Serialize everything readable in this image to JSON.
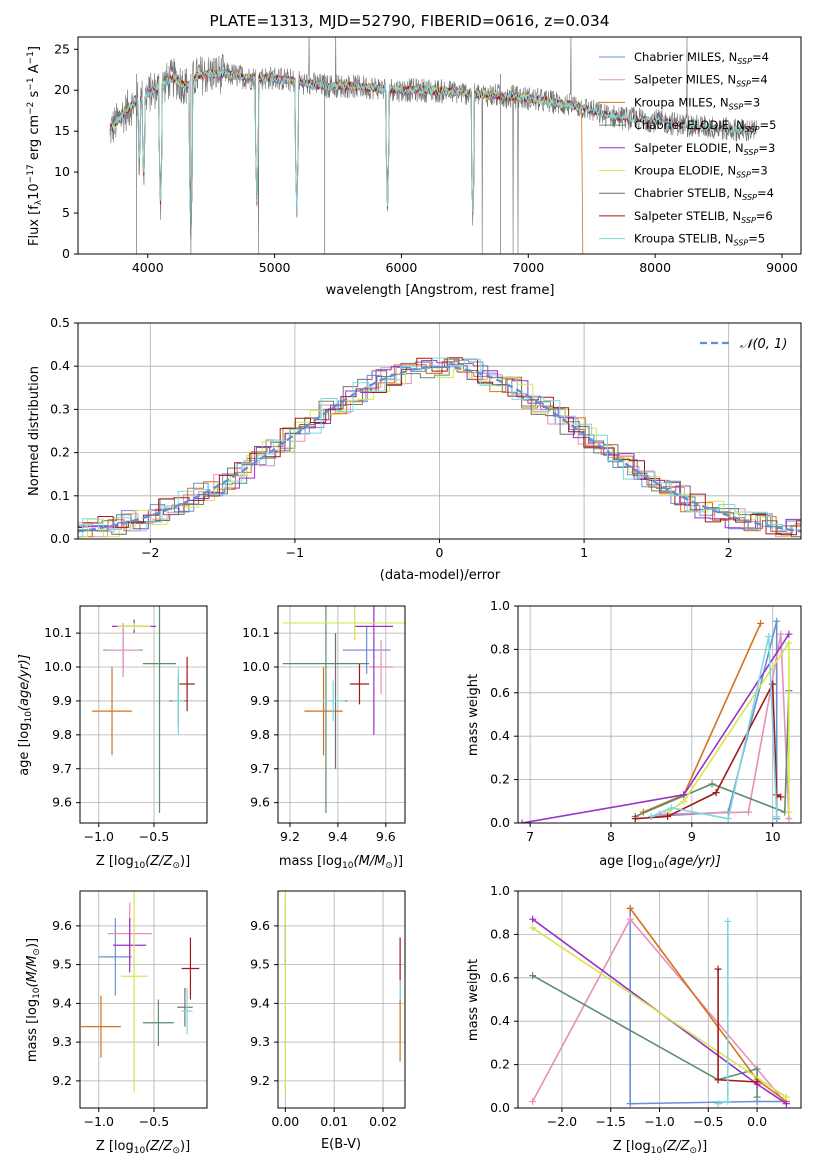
{
  "title": "PLATE=1313, MJD=52790, FIBERID=0616, z=0.034",
  "models": [
    {
      "name": "Chabrier MILES",
      "n": "4",
      "color": "#6a8fd6"
    },
    {
      "name": "Salpeter MILES",
      "n": "4",
      "color": "#e88fb8"
    },
    {
      "name": "Kroupa MILES",
      "n": "3",
      "color": "#d6721c"
    },
    {
      "name": "Chabrier ELODIE",
      "n": "5",
      "color": "#5f8c6a"
    },
    {
      "name": "Salpeter ELODIE",
      "n": "3",
      "color": "#9b30c8"
    },
    {
      "name": "Kroupa ELODIE",
      "n": "3",
      "color": "#d4e650"
    },
    {
      "name": "Chabrier STELIB",
      "n": "4",
      "color": "#707070"
    },
    {
      "name": "Salpeter STELIB",
      "n": "6",
      "color": "#a11a1a"
    },
    {
      "name": "Kroupa STELIB",
      "n": "5",
      "color": "#7fd8dc"
    }
  ],
  "legend_nssp_prefix": "N",
  "legend_nssp_sub": "SSP",
  "spectrum": {
    "xlabel": "wavelength [Angstrom, rest frame]",
    "ylabel_main": "Flux [f",
    "ylabel_sub": "λ",
    "ylabel_rest": "10",
    "ylabel_exp1": "−17",
    "ylabel_unit": " erg cm",
    "ylabel_exp2": "−2",
    "ylabel_s": " s",
    "ylabel_exp3": "−1",
    "ylabel_a": " A",
    "ylabel_exp4": "−1",
    "ylabel_close": "]",
    "xticks": [
      "4000",
      "5000",
      "6000",
      "7000",
      "8000",
      "9000"
    ],
    "yticks": [
      "0",
      "5",
      "10",
      "15",
      "20",
      "25"
    ]
  },
  "residuals": {
    "xlabel": "(data-model)/error",
    "ylabel": "Normed distribution",
    "xticks": [
      "−2",
      "−1",
      "0",
      "1",
      "2"
    ],
    "yticks": [
      "0.0",
      "0.1",
      "0.2",
      "0.3",
      "0.4",
      "0.5"
    ],
    "legend": "𝒩(0, 1)"
  },
  "panels": {
    "age_z": {
      "xlabel": "Z [log",
      "xsub": "10",
      "xrest": "(Z/Z",
      "xsun": "⊙",
      "xclose": ")]",
      "ylabel": "age  [log",
      "ysub": "10",
      "yrest": "(age/yr)]",
      "xticks": [
        "−1.0",
        "−0.5"
      ],
      "yticks": [
        "9.6",
        "9.7",
        "9.8",
        "9.9",
        "10.0",
        "10.1"
      ]
    },
    "age_mass": {
      "xlabel": "mass [log",
      "xsub": "10",
      "xrest": "(M/M",
      "xsun": "⊙",
      "xclose": ")]",
      "xticks": [
        "9.2",
        "9.4",
        "9.6"
      ],
      "yticks": [
        "9.6",
        "9.7",
        "9.8",
        "9.9",
        "10.0",
        "10.1"
      ]
    },
    "mw_age": {
      "xlabel": "age  [log",
      "xsub": "10",
      "xrest": "(age/yr)]",
      "ylabel": "mass weight",
      "xticks": [
        "7",
        "8",
        "9",
        "10"
      ],
      "yticks": [
        "0.0",
        "0.2",
        "0.4",
        "0.6",
        "0.8",
        "1.0"
      ]
    },
    "mass_z": {
      "xlabel": "Z [log",
      "xsub": "10",
      "xrest": "(Z/Z",
      "xsun": "⊙",
      "xclose": ")]",
      "ylabel": "mass [log",
      "ysub": "10",
      "yrest": "(M/M",
      "ysun": "⊙",
      "yclose": ")]",
      "xticks": [
        "−1.0",
        "−0.5"
      ],
      "yticks": [
        "9.2",
        "9.3",
        "9.4",
        "9.5",
        "9.6"
      ]
    },
    "mass_ebv": {
      "xlabel": "E(B-V)",
      "xticks": [
        "0.00",
        "0.01",
        "0.02"
      ],
      "yticks": [
        "9.2",
        "9.3",
        "9.4",
        "9.5",
        "9.6"
      ]
    },
    "mw_z": {
      "xlabel": "Z [log",
      "xsub": "10",
      "xrest": "(Z/Z",
      "xsun": "⊙",
      "xclose": ")]",
      "ylabel": "mass weight",
      "xticks": [
        "−2.0",
        "−1.5",
        "−1.0",
        "−0.5",
        "0.0"
      ],
      "yticks": [
        "0.0",
        "0.2",
        "0.4",
        "0.6",
        "0.8",
        "1.0"
      ]
    }
  },
  "chart_data": [
    {
      "type": "line",
      "title": "PLATE=1313, MJD=52790, FIBERID=0616, z=0.034",
      "xlabel": "wavelength [Angstrom, rest frame]",
      "ylabel": "Flux [fλ 10^-17 erg cm^-2 s^-1 A^-1]",
      "xlim": [
        3450,
        9150
      ],
      "ylim": [
        0,
        26.5
      ],
      "x": [
        3700,
        3800,
        3900,
        4000,
        4100,
        4200,
        4300,
        4400,
        4500,
        4600,
        4800,
        5000,
        5200,
        5400,
        5600,
        5800,
        6000,
        6200,
        6400,
        6600,
        6800,
        7000,
        7200,
        7400,
        7600,
        7800,
        8000,
        8200,
        8400,
        8600,
        8800,
        9000
      ],
      "series": [
        {
          "values": [
            15,
            17,
            18.5,
            19.5,
            20.5,
            21.5,
            20.5,
            21.8,
            22,
            22,
            21.5,
            21.5,
            21,
            20.5,
            20.5,
            20.3,
            20,
            20,
            19.8,
            19.5,
            19.3,
            19,
            18.5,
            18,
            17,
            16.5,
            16.3,
            15.8,
            15.5,
            15.2,
            15,
            14.8
          ]
        }
      ],
      "legend": "top-right",
      "grid": false
    },
    {
      "type": "line",
      "xlabel": "(data-model)/error",
      "ylabel": "Normed distribution",
      "xlim": [
        -2.5,
        2.5
      ],
      "ylim": [
        0,
        0.5
      ],
      "series": [
        {
          "name": "𝒩(0, 1)",
          "values": "gaussian"
        }
      ],
      "legend": "top-right",
      "grid": true
    },
    {
      "type": "scatter",
      "xlabel": "Z [log10(Z/Z⊙)]",
      "ylabel": "age [log10(age/yr)]",
      "xlim": [
        -1.17,
        -0.02
      ],
      "ylim": [
        9.54,
        10.18
      ],
      "points": [
        {
          "series": "Chabrier MILES",
          "x": -0.78,
          "y": 10.05,
          "xerr": 0.18,
          "yerr": 0.07
        },
        {
          "series": "Salpeter MILES",
          "x": -0.78,
          "y": 10.05,
          "xerr": 0.15,
          "yerr": 0.08
        },
        {
          "series": "Kroupa MILES",
          "x": -0.88,
          "y": 9.87,
          "xerr": 0.18,
          "yerr": 0.13
        },
        {
          "series": "Chabrier ELODIE",
          "x": -0.45,
          "y": 10.01,
          "xerr": 0.15,
          "yerr": 0.44
        },
        {
          "series": "Salpeter ELODIE",
          "x": -0.68,
          "y": 10.12,
          "xerr": 0.2,
          "yerr": 0.02
        },
        {
          "series": "Kroupa ELODIE",
          "x": -0.68,
          "y": 10.12,
          "xerr": 0.15,
          "yerr": 0.01
        },
        {
          "series": "Chabrier STELIB",
          "x": -0.28,
          "y": 9.9,
          "xerr": 0.08,
          "yerr": 0.07
        },
        {
          "series": "Salpeter STELIB",
          "x": -0.2,
          "y": 9.95,
          "xerr": 0.07,
          "yerr": 0.08
        },
        {
          "series": "Kroupa STELIB",
          "x": -0.28,
          "y": 9.9,
          "xerr": 0.05,
          "yerr": 0.1
        }
      ]
    },
    {
      "type": "scatter",
      "xlabel": "mass [log10(M/M⊙)]",
      "ylabel": "age [log10(age/yr)]",
      "xlim": [
        9.15,
        9.68
      ],
      "ylim": [
        9.54,
        10.18
      ],
      "points": [
        {
          "series": "Chabrier MILES",
          "x": 9.52,
          "y": 10.05,
          "xerr": 0.1,
          "yerr": 0.07
        },
        {
          "series": "Salpeter MILES",
          "x": 9.58,
          "y": 10.0,
          "xerr": 0.05,
          "yerr": 0.08
        },
        {
          "series": "Kroupa MILES",
          "x": 9.34,
          "y": 9.87,
          "xerr": 0.08,
          "yerr": 0.13
        },
        {
          "series": "Chabrier ELODIE",
          "x": 9.35,
          "y": 10.01,
          "xerr": 0.18,
          "yerr": 0.44
        },
        {
          "series": "Salpeter ELODIE",
          "x": 9.55,
          "y": 10.12,
          "xerr": 0.08,
          "yerr": 0.32
        },
        {
          "series": "Kroupa ELODIE",
          "x": 9.47,
          "y": 10.13,
          "xerr": 0.3,
          "yerr": 0.05
        },
        {
          "series": "Chabrier STELIB",
          "x": 9.39,
          "y": 9.9,
          "xerr": 0.05,
          "yerr": 0.2
        },
        {
          "series": "Salpeter STELIB",
          "x": 9.49,
          "y": 9.95,
          "xerr": 0.04,
          "yerr": 0.06
        },
        {
          "series": "Kroupa STELIB",
          "x": 9.38,
          "y": 9.9,
          "xerr": 0.05,
          "yerr": 0.06
        }
      ]
    },
    {
      "type": "line",
      "xlabel": "age [log10(age/yr)]",
      "ylabel": "mass weight",
      "xlim": [
        6.85,
        10.35
      ],
      "ylim": [
        0,
        1
      ],
      "series": [
        {
          "name": "Chabrier MILES",
          "x": [
            8.5,
            9.45,
            10.05,
            10.05
          ],
          "y": [
            0.03,
            0.05,
            0.93,
            0.02
          ]
        },
        {
          "name": "Salpeter MILES",
          "x": [
            8.6,
            9.7,
            10.1,
            10.2
          ],
          "y": [
            0.04,
            0.05,
            0.87,
            0.02
          ]
        },
        {
          "name": "Kroupa MILES",
          "x": [
            8.4,
            8.9,
            9.85
          ],
          "y": [
            0.05,
            0.13,
            0.92
          ]
        },
        {
          "name": "Chabrier ELODIE",
          "x": [
            8.3,
            9.25,
            10.15,
            10.2
          ],
          "y": [
            0.03,
            0.18,
            0.05,
            0.61
          ]
        },
        {
          "name": "Salpeter ELODIE",
          "x": [
            6.9,
            8.9,
            10.2
          ],
          "y": [
            0.0,
            0.13,
            0.87
          ]
        },
        {
          "name": "Kroupa ELODIE",
          "x": [
            8.7,
            8.9,
            10.2,
            10.2
          ],
          "y": [
            0.05,
            0.1,
            0.83,
            0.05
          ]
        },
        {
          "name": "Salpeter STELIB",
          "x": [
            8.3,
            8.7,
            9.3,
            10.0,
            10.05,
            10.1
          ],
          "y": [
            0.02,
            0.03,
            0.14,
            0.64,
            0.13,
            0.12
          ]
        },
        {
          "name": "Kroupa STELIB",
          "x": [
            8.5,
            8.75,
            9.45,
            9.95,
            10.05
          ],
          "y": [
            0.03,
            0.07,
            0.02,
            0.86,
            0.03
          ]
        }
      ]
    },
    {
      "type": "scatter",
      "xlabel": "Z [log10(Z/Z⊙)]",
      "ylabel": "mass [log10(M/M⊙)]",
      "xlim": [
        -1.17,
        -0.02
      ],
      "ylim": [
        9.13,
        9.69
      ],
      "points": [
        {
          "series": "Chabrier MILES",
          "x": -0.85,
          "y": 9.52,
          "xerr": 0.15,
          "yerr": 0.1
        },
        {
          "series": "Salpeter MILES",
          "x": -0.72,
          "y": 9.58,
          "xerr": 0.2,
          "yerr": 0.08
        },
        {
          "series": "Kroupa MILES",
          "x": -0.98,
          "y": 9.34,
          "xerr": 0.18,
          "yerr": 0.08
        },
        {
          "series": "Chabrier ELODIE",
          "x": -0.46,
          "y": 9.35,
          "xerr": 0.14,
          "yerr": 0.06
        },
        {
          "series": "Salpeter ELODIE",
          "x": -0.72,
          "y": 9.55,
          "xerr": 0.15,
          "yerr": 0.07
        },
        {
          "series": "Kroupa ELODIE",
          "x": -0.68,
          "y": 9.47,
          "xerr": 0.12,
          "yerr": 0.3
        },
        {
          "series": "Chabrier STELIB",
          "x": -0.22,
          "y": 9.39,
          "xerr": 0.07,
          "yerr": 0.05
        },
        {
          "series": "Salpeter STELIB",
          "x": -0.17,
          "y": 9.49,
          "xerr": 0.08,
          "yerr": 0.08
        },
        {
          "series": "Kroupa STELIB",
          "x": -0.2,
          "y": 9.38,
          "xerr": 0.05,
          "yerr": 0.06
        }
      ]
    },
    {
      "type": "scatter",
      "xlabel": "E(B-V)",
      "ylabel": "mass [log10(M/M⊙)]",
      "xlim": [
        -0.0015,
        0.0245
      ],
      "ylim": [
        9.13,
        9.69
      ],
      "points": [
        {
          "series": "Salpeter MILES",
          "x": 0.0,
          "y": 9.58,
          "yerr": 0.08
        },
        {
          "series": "Salpeter ELODIE",
          "x": 0.0,
          "y": 9.55,
          "yerr": 0.05
        },
        {
          "series": "Kroupa ELODIE",
          "x": 0.0,
          "y": 9.47,
          "yerr": 0.3
        },
        {
          "series": "Salpeter STELIB",
          "x": 0.0235,
          "y": 9.49,
          "yerr": 0.08
        },
        {
          "series": "Kroupa STELIB",
          "x": 0.0235,
          "y": 9.38,
          "yerr": 0.08
        },
        {
          "series": "Kroupa MILES",
          "x": 0.0235,
          "y": 9.33,
          "yerr": 0.08
        }
      ]
    },
    {
      "type": "line",
      "xlabel": "Z [log10(Z/Z⊙)]",
      "ylabel": "mass weight",
      "xlim": [
        -2.45,
        0.45
      ],
      "ylim": [
        0,
        1
      ],
      "series": [
        {
          "name": "Chabrier MILES",
          "x": [
            -1.3,
            -1.3,
            0.0,
            0.3
          ],
          "y": [
            0.92,
            0.02,
            0.03,
            0.03
          ]
        },
        {
          "name": "Salpeter MILES",
          "x": [
            -2.3,
            -1.3,
            0.3
          ],
          "y": [
            0.03,
            0.87,
            0.02
          ]
        },
        {
          "name": "Kroupa MILES",
          "x": [
            -1.3,
            0.0,
            0.3
          ],
          "y": [
            0.92,
            0.13,
            0.03
          ]
        },
        {
          "name": "Chabrier ELODIE",
          "x": [
            -2.3,
            -0.4,
            0.0,
            0.0
          ],
          "y": [
            0.61,
            0.13,
            0.18,
            0.05
          ]
        },
        {
          "name": "Salpeter ELODIE",
          "x": [
            -2.3,
            0.0,
            0.3
          ],
          "y": [
            0.87,
            0.11,
            0.02
          ]
        },
        {
          "name": "Kroupa ELODIE",
          "x": [
            -2.3,
            0.3
          ],
          "y": [
            0.83,
            0.05
          ]
        },
        {
          "name": "Salpeter STELIB",
          "x": [
            -0.4,
            -0.4,
            0.0
          ],
          "y": [
            0.64,
            0.13,
            0.12
          ]
        },
        {
          "name": "Kroupa STELIB",
          "x": [
            -0.3,
            -0.3,
            -0.4
          ],
          "y": [
            0.86,
            0.03,
            0.02
          ]
        }
      ]
    }
  ]
}
